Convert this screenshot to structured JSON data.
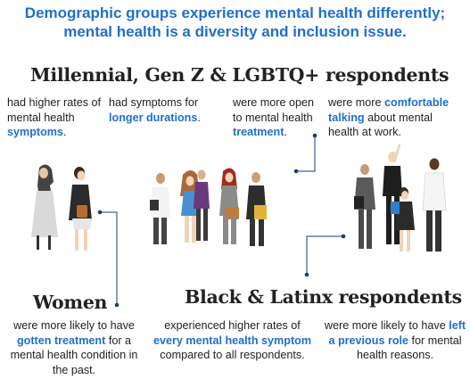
{
  "headline": {
    "line1": "Demographic groups experience mental health differently;",
    "line2": "mental health is a diversity and inclusion issue."
  },
  "millennial": {
    "title": "Millennial, Gen Z & LGBTQ+ respondents",
    "col1": {
      "pre": "had higher rates of mental health",
      "highlight": "symptoms",
      "post": "."
    },
    "col2": {
      "pre": "had symptoms for",
      "highlight": "longer durations",
      "post": "."
    },
    "col3": {
      "pre": "were more open to mental health",
      "highlight": "treatment",
      "post": "."
    },
    "col4": {
      "pre": "were more",
      "highlight": "comfortable talking",
      "post": "about mental health at work."
    }
  },
  "women": {
    "title": "Women",
    "pre": "were more likely to have",
    "highlight": "gotten treatment",
    "post": "for a mental health condition in the past."
  },
  "black_latinx": {
    "title": "Black & Latinx respondents",
    "col1": {
      "pre": "experienced higher rates of",
      "highlight": "every mental health symptom",
      "post": "compared to all respondents."
    },
    "col2": {
      "pre": "were more likely to have",
      "highlight": "left a previous role",
      "post": "for mental health reasons."
    }
  },
  "colors": {
    "accent": "#1f6fcc",
    "text": "#222222",
    "connector": "#1a3a78"
  },
  "icons": [
    "women-illustration",
    "millennial-group-illustration",
    "workplace-group-illustration"
  ]
}
